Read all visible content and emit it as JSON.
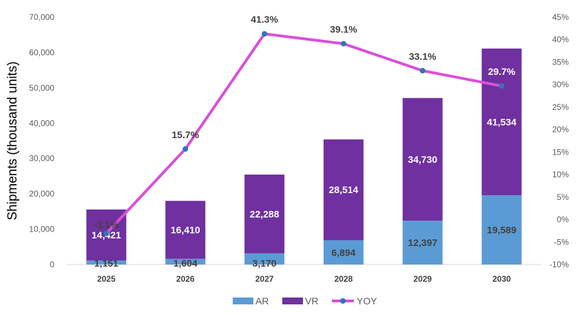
{
  "chart_data": {
    "type": "bar",
    "stacked": true,
    "categories": [
      "2025",
      "2026",
      "2027",
      "2028",
      "2029",
      "2030"
    ],
    "series": [
      {
        "name": "AR",
        "values": [
          1151,
          1604,
          3170,
          6894,
          12397,
          19589
        ],
        "color": "#5B9BD5",
        "labels": [
          "1,151",
          "1,604",
          "3,170",
          "6,894",
          "12,397",
          "19,589"
        ]
      },
      {
        "name": "VR",
        "values": [
          14421,
          16410,
          22288,
          28514,
          34730,
          41534
        ],
        "color": "#7030A0",
        "labels": [
          "14,421",
          "16,410",
          "22,288",
          "28,514",
          "34,730",
          "41,534"
        ]
      }
    ],
    "line": {
      "name": "YOY",
      "axis": "secondary",
      "color": "#D94FD9",
      "marker_color": "#2E75B6",
      "values": [
        -3.1,
        15.7,
        41.3,
        39.1,
        33.1,
        29.7
      ],
      "labels": [
        "-3.1%",
        "15.7%",
        "41.3%",
        "39.1%",
        "33.1%",
        "29.7%"
      ]
    },
    "ylabel": "Shipments (thousand units)",
    "ylim": [
      0,
      70000
    ],
    "yticks": [
      "0",
      "10,000",
      "20,000",
      "30,000",
      "40,000",
      "50,000",
      "60,000",
      "70,000"
    ],
    "y2lim": [
      -10,
      45
    ],
    "y2ticks": [
      "-10%",
      "-5%",
      "0%",
      "5%",
      "10%",
      "15%",
      "20%",
      "25%",
      "30%",
      "35%",
      "40%",
      "45%"
    ],
    "grid": false,
    "legend_position": "bottom"
  }
}
